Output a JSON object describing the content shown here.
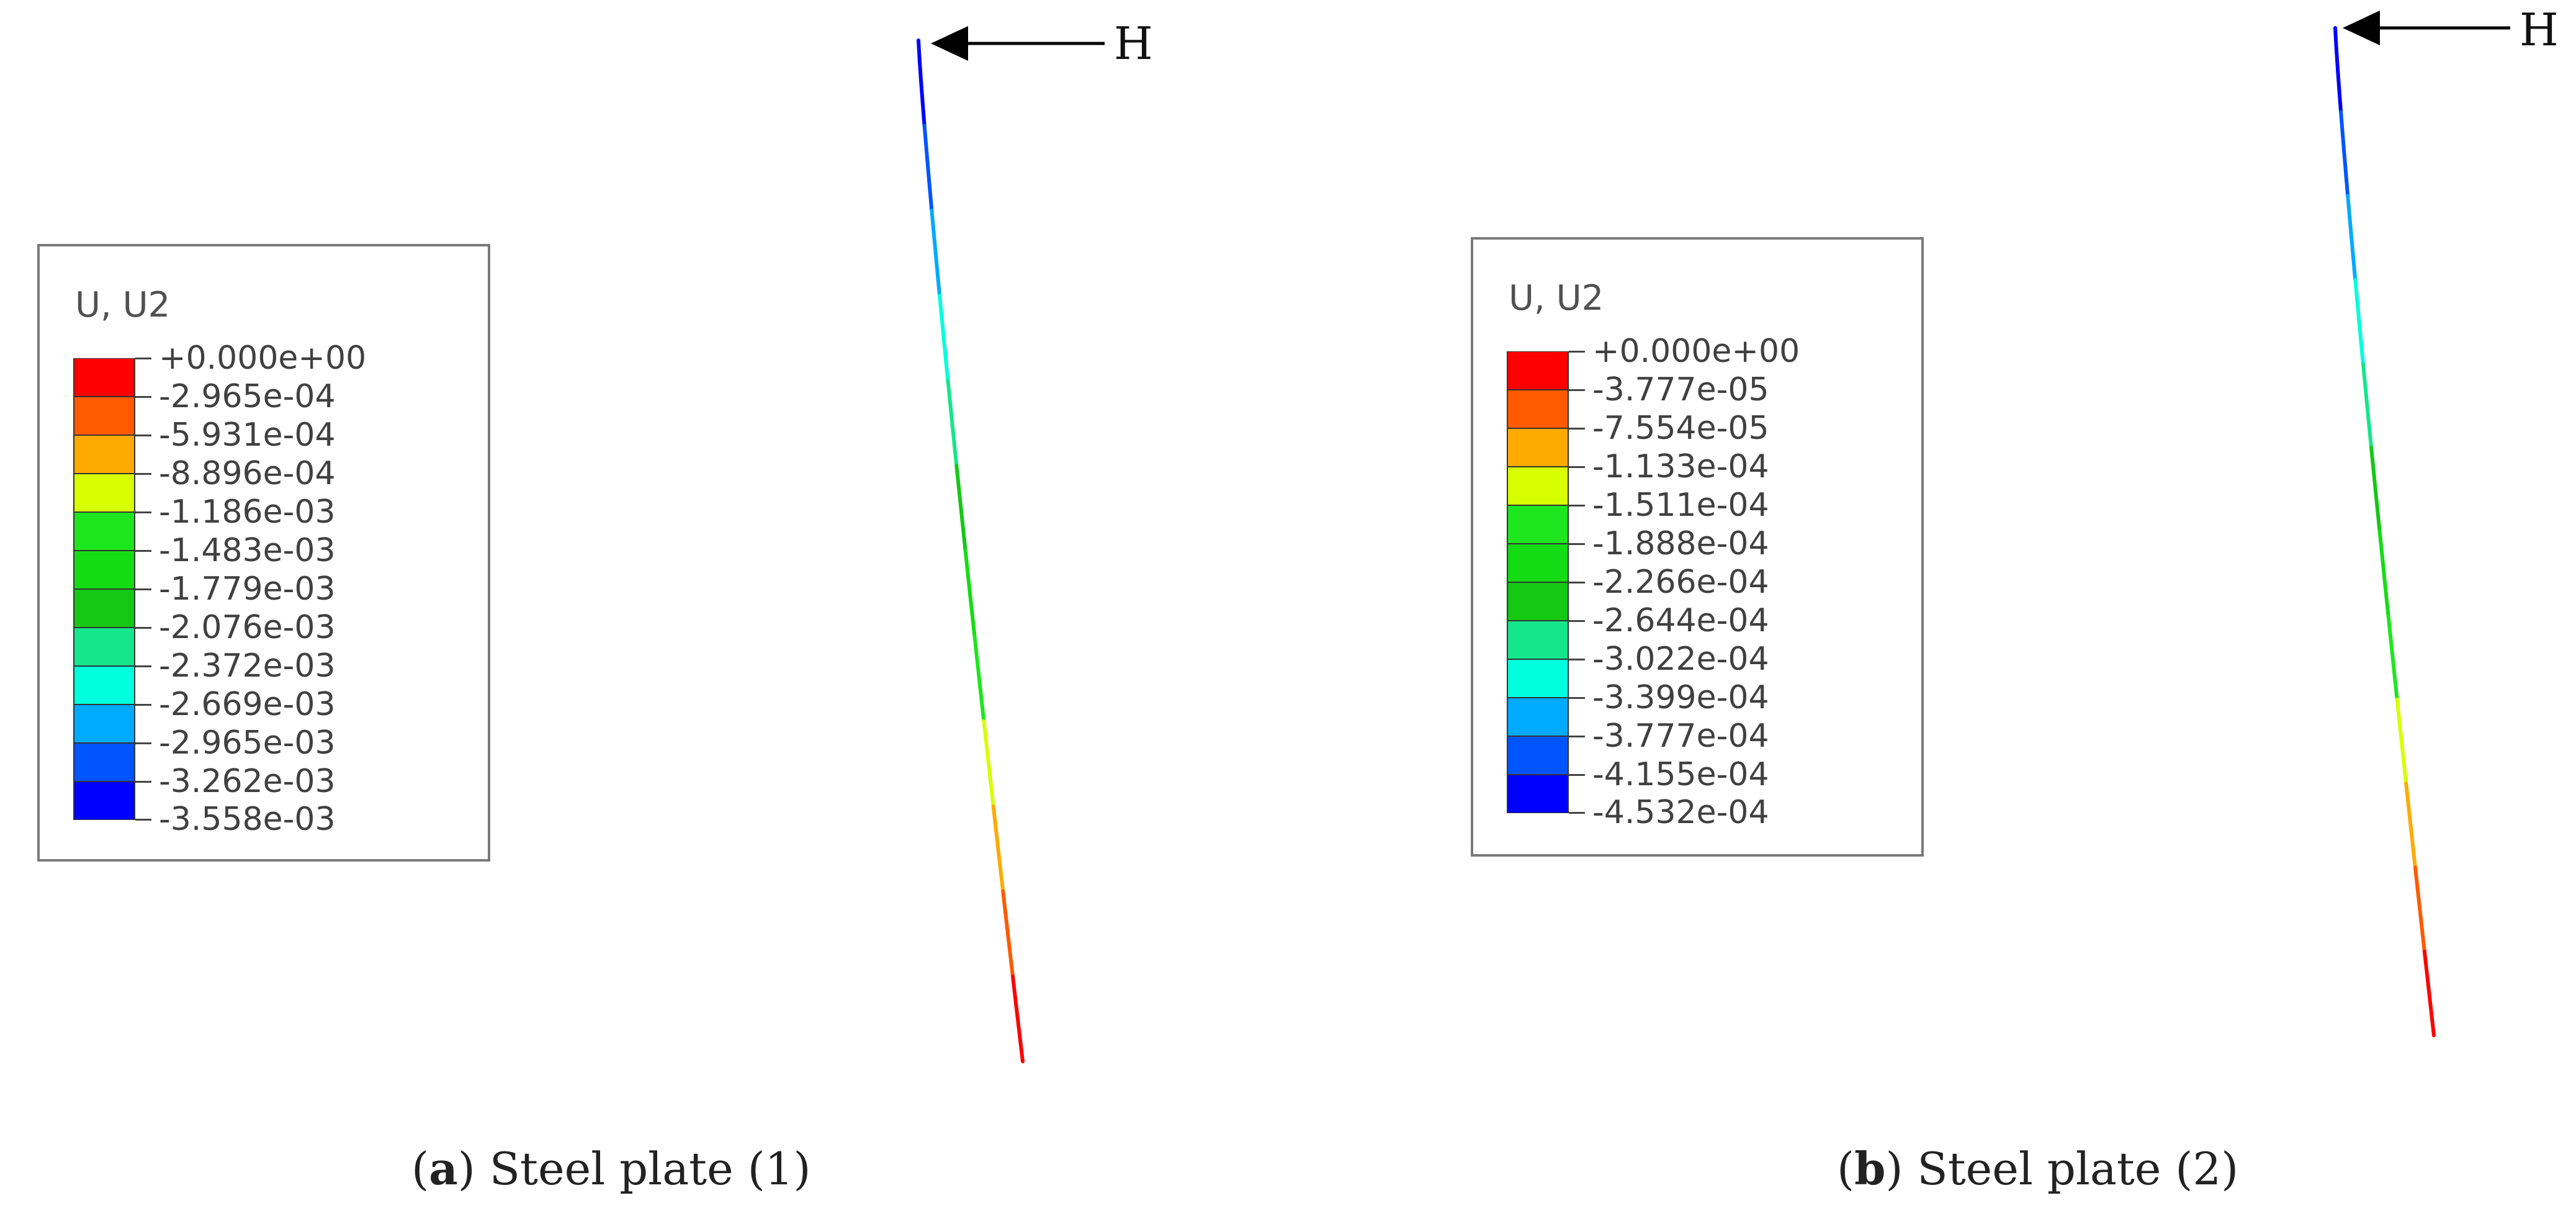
{
  "colormap": [
    "#ff0000",
    "#ff5a00",
    "#ffaa00",
    "#d7ff00",
    "#1ee61e",
    "#14dc14",
    "#14c814",
    "#14e68c",
    "#00ffdc",
    "#00aaff",
    "#0055ff",
    "#0000ff"
  ],
  "panels": [
    {
      "legend": {
        "title": "U, U2",
        "labels": [
          "+0.000e+00",
          "-2.965e-04",
          "-5.931e-04",
          "-8.896e-04",
          "-1.186e-03",
          "-1.483e-03",
          "-1.779e-03",
          "-2.076e-03",
          "-2.372e-03",
          "-2.669e-03",
          "-2.965e-03",
          "-3.262e-03",
          "-3.558e-03"
        ]
      },
      "load_label": "H",
      "caption": {
        "open": "(",
        "letter": "a",
        "rest": ") Steel plate (1)"
      }
    },
    {
      "legend": {
        "title": "U, U2",
        "labels": [
          "+0.000e+00",
          "-3.777e-05",
          "-7.554e-05",
          "-1.133e-04",
          "-1.511e-04",
          "-1.888e-04",
          "-2.266e-04",
          "-2.644e-04",
          "-3.022e-04",
          "-3.399e-04",
          "-3.777e-04",
          "-4.155e-04",
          "-4.532e-04"
        ]
      },
      "load_label": "H",
      "caption": {
        "open": "(",
        "letter": "b",
        "rest": ") Steel plate (2)"
      }
    }
  ]
}
